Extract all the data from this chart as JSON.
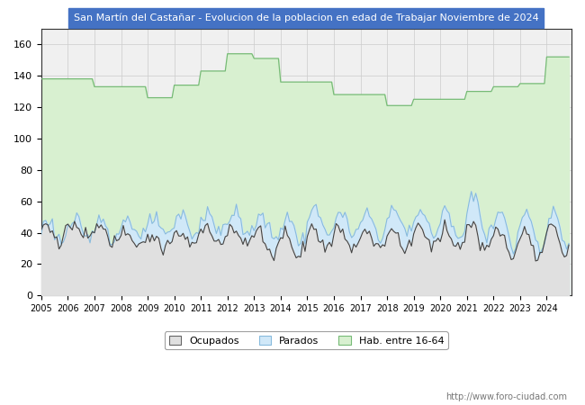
{
  "title": "San Martín del Castañar - Evolucion de la poblacion en edad de Trabajar Noviembre de 2024",
  "title_color": "#ffffff",
  "title_bg_color": "#4472c4",
  "ylim": [
    0,
    170
  ],
  "yticks": [
    0,
    20,
    40,
    60,
    80,
    100,
    120,
    140,
    160
  ],
  "legend_labels": [
    "Ocupados",
    "Parados",
    "Hab. entre 16-64"
  ],
  "url_text": "http://www.foro-ciudad.com",
  "ocupados_color": "#444444",
  "parados_color": "#88bbdd",
  "hab_color": "#77bb77",
  "ocupados_fill": "#e0e0e0",
  "parados_fill": "#d0e8f8",
  "hab_fill": "#d8f0d0",
  "grid_color": "#cccccc",
  "years_x": [
    2005,
    2006,
    2007,
    2008,
    2009,
    2010,
    2011,
    2012,
    2013,
    2014,
    2015,
    2016,
    2017,
    2018,
    2019,
    2020,
    2021,
    2022,
    2023,
    2024
  ],
  "hab_annual": [
    138,
    138,
    133,
    133,
    126,
    134,
    143,
    154,
    151,
    136,
    136,
    128,
    128,
    121,
    125,
    125,
    130,
    133,
    135,
    152
  ],
  "parados_base": [
    48,
    48,
    50,
    50,
    50,
    52,
    54,
    54,
    52,
    50,
    55,
    52,
    52,
    55,
    55,
    55,
    68,
    55,
    55,
    55
  ],
  "parados_min": [
    35,
    35,
    36,
    36,
    36,
    38,
    40,
    38,
    36,
    34,
    40,
    38,
    38,
    40,
    38,
    36,
    35,
    30,
    30,
    30
  ],
  "ocupados_base": [
    45,
    46,
    44,
    42,
    38,
    40,
    43,
    45,
    42,
    40,
    44,
    44,
    42,
    42,
    44,
    44,
    46,
    42,
    40,
    44
  ],
  "ocupados_min": [
    35,
    36,
    34,
    34,
    30,
    32,
    34,
    32,
    26,
    26,
    30,
    30,
    30,
    30,
    32,
    30,
    28,
    26,
    24,
    26
  ]
}
